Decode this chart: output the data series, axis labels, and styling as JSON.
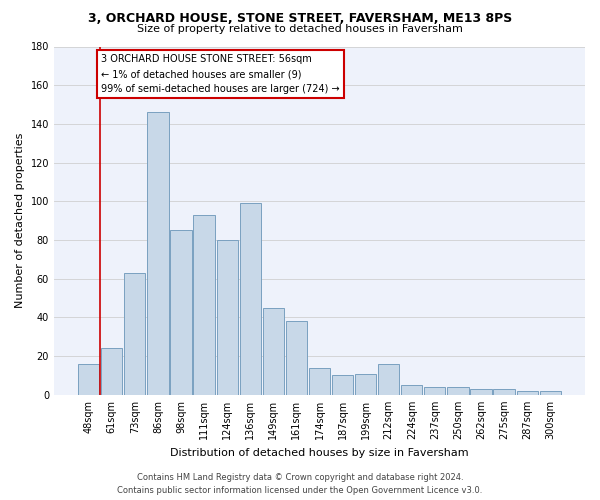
{
  "title": "3, ORCHARD HOUSE, STONE STREET, FAVERSHAM, ME13 8PS",
  "subtitle": "Size of property relative to detached houses in Faversham",
  "xlabel": "Distribution of detached houses by size in Faversham",
  "ylabel": "Number of detached properties",
  "bar_color": "#c8d8e8",
  "bar_edge_color": "#7aa0c0",
  "categories": [
    "48sqm",
    "61sqm",
    "73sqm",
    "86sqm",
    "98sqm",
    "111sqm",
    "124sqm",
    "136sqm",
    "149sqm",
    "161sqm",
    "174sqm",
    "187sqm",
    "199sqm",
    "212sqm",
    "224sqm",
    "237sqm",
    "250sqm",
    "262sqm",
    "275sqm",
    "287sqm",
    "300sqm"
  ],
  "values": [
    16,
    24,
    63,
    146,
    85,
    93,
    80,
    99,
    45,
    38,
    14,
    10,
    11,
    16,
    5,
    4,
    4,
    3,
    3,
    2,
    2
  ],
  "ylim": [
    0,
    180
  ],
  "yticks": [
    0,
    20,
    40,
    60,
    80,
    100,
    120,
    140,
    160,
    180
  ],
  "annotation_box_text": "3 ORCHARD HOUSE STONE STREET: 56sqm\n← 1% of detached houses are smaller (9)\n99% of semi-detached houses are larger (724) →",
  "annotation_box_color": "#ffffff",
  "annotation_box_edge_color": "#cc0000",
  "footer_line1": "Contains HM Land Registry data © Crown copyright and database right 2024.",
  "footer_line2": "Contains public sector information licensed under the Open Government Licence v3.0.",
  "background_color": "#eef2fb",
  "grid_color": "#d0d0d0",
  "title_fontsize": 9,
  "subtitle_fontsize": 8,
  "xlabel_fontsize": 8,
  "ylabel_fontsize": 8,
  "tick_fontsize": 7,
  "footer_fontsize": 6,
  "annot_fontsize": 7
}
